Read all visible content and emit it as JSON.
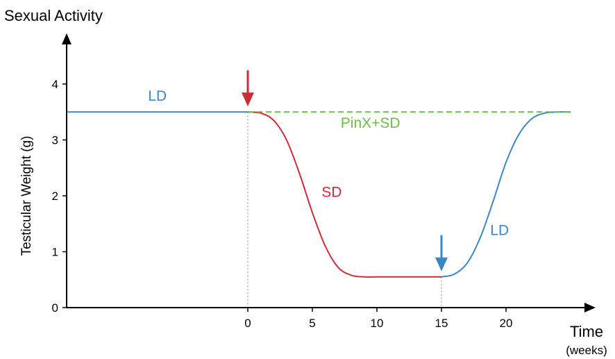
{
  "chart_data": {
    "type": "line",
    "top_label": "Sexual Activity",
    "ylabel": "Testicular Weight (g)",
    "xlabel": "Time",
    "xunit": "(weeks)",
    "ylim": [
      0,
      4
    ],
    "xlim": [
      -14,
      25.5
    ],
    "y_ticks": [
      "0",
      "1",
      "2",
      "3",
      "4"
    ],
    "x_ticks": [
      "0",
      "5",
      "10",
      "15",
      "20"
    ],
    "grid": false,
    "colors": {
      "ld": "#3b86c6",
      "sd": "#cf2a36",
      "pinx": "#6cbd45",
      "axis": "#000000",
      "guide": "#9a9a9a"
    },
    "series": [
      {
        "name": "LD",
        "x": [
          -14,
          -10,
          -5,
          0
        ],
        "y": [
          3.5,
          3.5,
          3.5,
          3.5
        ]
      },
      {
        "name": "SD",
        "x": [
          0,
          1,
          2,
          3,
          4,
          5,
          6,
          7,
          8,
          9,
          10,
          12,
          14,
          15
        ],
        "y": [
          3.5,
          3.48,
          3.35,
          3.0,
          2.4,
          1.7,
          1.1,
          0.72,
          0.58,
          0.55,
          0.55,
          0.55,
          0.55,
          0.55
        ]
      },
      {
        "name": "LD",
        "x": [
          15,
          16,
          17,
          18,
          19,
          20,
          21,
          22,
          23,
          24,
          25
        ],
        "y": [
          0.55,
          0.6,
          0.8,
          1.25,
          1.9,
          2.6,
          3.1,
          3.38,
          3.48,
          3.5,
          3.5
        ]
      },
      {
        "name": "PinX+SD",
        "x": [
          0,
          25
        ],
        "y": [
          3.5,
          3.5
        ]
      }
    ],
    "annotations": [
      {
        "text": "LD",
        "x": -7,
        "y": 3.7,
        "color": "ld"
      },
      {
        "text": "PinX+SD",
        "x": 9.5,
        "y": 3.22,
        "color": "pinx"
      },
      {
        "text": "SD",
        "x": 6.5,
        "y": 1.98,
        "color": "sd"
      },
      {
        "text": "LD",
        "x": 19.5,
        "y": 1.3,
        "color": "ld"
      }
    ],
    "arrows": [
      {
        "x": 0,
        "color": "sd"
      },
      {
        "x": 15,
        "color": "ld"
      }
    ],
    "guides_at_x": [
      0,
      15
    ]
  }
}
